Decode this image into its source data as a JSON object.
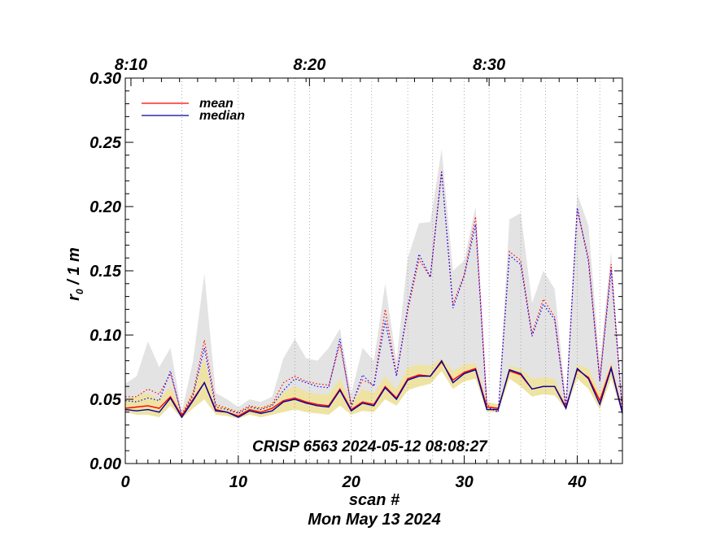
{
  "chart_data": {
    "type": "line",
    "title": "",
    "xlabel": "scan #",
    "ylabel": "r₀ / 1 m",
    "ylabel_main": "r",
    "ylabel_sub": "0",
    "ylabel_rest": " / 1 m",
    "date_label": "Mon May 13 2024",
    "annotation": "CRISP 6563 2024-05-12 08:08:27",
    "xlim": [
      0,
      44
    ],
    "ylim": [
      0,
      0.3
    ],
    "x_ticks": [
      0,
      10,
      20,
      30,
      40
    ],
    "x_tick_labels": [
      "0",
      "10",
      "20",
      "30",
      "40"
    ],
    "y_ticks": [
      0,
      0.05,
      0.1,
      0.15,
      0.2,
      0.25,
      0.3
    ],
    "y_tick_labels": [
      "0.00",
      "0.05",
      "0.10",
      "0.15",
      "0.20",
      "0.25",
      "0.30"
    ],
    "top_axis": {
      "ticks": [
        {
          "x": 0.5,
          "label": "8:10"
        },
        {
          "x": 16.3,
          "label": "8:20"
        },
        {
          "x": 32.2,
          "label": "8:30"
        }
      ]
    },
    "vertical_dotted_lines": [
      5,
      10,
      15,
      20,
      25,
      30,
      35,
      40,
      16.3,
      32.2,
      37.2,
      21.8,
      27.2,
      42.0
    ],
    "x": [
      0,
      1,
      2,
      3,
      4,
      5,
      6,
      7,
      8,
      9,
      10,
      11,
      12,
      13,
      14,
      15,
      16,
      17,
      18,
      19,
      20,
      21,
      22,
      23,
      24,
      25,
      26,
      27,
      28,
      29,
      30,
      31,
      32,
      33,
      34,
      35,
      36,
      37,
      38,
      39,
      40,
      41,
      42,
      43,
      44
    ],
    "series": [
      {
        "name": "mean",
        "color": "#ff0000",
        "style": "solid",
        "values": [
          0.043,
          0.044,
          0.045,
          0.043,
          0.052,
          0.037,
          0.05,
          0.063,
          0.042,
          0.04,
          0.037,
          0.042,
          0.04,
          0.043,
          0.049,
          0.051,
          0.048,
          0.046,
          0.045,
          0.058,
          0.042,
          0.048,
          0.046,
          0.06,
          0.051,
          0.066,
          0.069,
          0.068,
          0.079,
          0.065,
          0.071,
          0.074,
          0.044,
          0.043,
          0.072,
          0.069,
          0.058,
          0.06,
          0.06,
          0.044,
          0.073,
          0.067,
          0.049,
          0.075,
          0.04
        ]
      },
      {
        "name": "median",
        "color": "#0000a0",
        "style": "solid",
        "values": [
          0.042,
          0.041,
          0.042,
          0.04,
          0.051,
          0.036,
          0.049,
          0.063,
          0.041,
          0.04,
          0.036,
          0.041,
          0.039,
          0.041,
          0.048,
          0.05,
          0.047,
          0.045,
          0.044,
          0.057,
          0.041,
          0.047,
          0.045,
          0.059,
          0.05,
          0.065,
          0.068,
          0.068,
          0.08,
          0.063,
          0.07,
          0.073,
          0.042,
          0.042,
          0.073,
          0.07,
          0.058,
          0.06,
          0.06,
          0.043,
          0.074,
          0.066,
          0.046,
          0.074,
          0.039
        ]
      },
      {
        "name": "mean (dotted)",
        "color": "#ff0000",
        "style": "dotted",
        "values": [
          0.052,
          0.052,
          0.058,
          0.054,
          0.07,
          0.038,
          0.055,
          0.096,
          0.046,
          0.043,
          0.04,
          0.045,
          0.043,
          0.046,
          0.063,
          0.068,
          0.064,
          0.062,
          0.061,
          0.093,
          0.046,
          0.065,
          0.061,
          0.12,
          0.069,
          0.119,
          0.159,
          0.145,
          0.228,
          0.124,
          0.147,
          0.192,
          0.046,
          0.04,
          0.165,
          0.158,
          0.101,
          0.128,
          0.114,
          0.044,
          0.197,
          0.16,
          0.065,
          0.155,
          0.04
        ]
      },
      {
        "name": "median (dotted)",
        "color": "#0000ff",
        "style": "dotted",
        "values": [
          0.049,
          0.048,
          0.051,
          0.049,
          0.072,
          0.037,
          0.053,
          0.09,
          0.044,
          0.042,
          0.039,
          0.044,
          0.042,
          0.045,
          0.057,
          0.066,
          0.063,
          0.06,
          0.059,
          0.097,
          0.044,
          0.069,
          0.06,
          0.111,
          0.068,
          0.122,
          0.163,
          0.145,
          0.227,
          0.121,
          0.146,
          0.186,
          0.044,
          0.04,
          0.162,
          0.155,
          0.099,
          0.124,
          0.112,
          0.043,
          0.199,
          0.157,
          0.064,
          0.151,
          0.04
        ]
      }
    ],
    "bands": [
      {
        "name": "outer range",
        "color": "#e3e3e3",
        "lower": [
          0.042,
          0.041,
          0.042,
          0.04,
          0.051,
          0.036,
          0.049,
          0.063,
          0.041,
          0.04,
          0.036,
          0.041,
          0.039,
          0.041,
          0.048,
          0.05,
          0.047,
          0.045,
          0.044,
          0.057,
          0.041,
          0.047,
          0.045,
          0.059,
          0.05,
          0.065,
          0.068,
          0.068,
          0.08,
          0.063,
          0.07,
          0.073,
          0.042,
          0.042,
          0.073,
          0.07,
          0.058,
          0.06,
          0.06,
          0.043,
          0.074,
          0.066,
          0.046,
          0.074,
          0.039
        ],
        "upper": [
          0.062,
          0.068,
          0.095,
          0.075,
          0.09,
          0.04,
          0.08,
          0.148,
          0.055,
          0.05,
          0.044,
          0.05,
          0.048,
          0.052,
          0.082,
          0.097,
          0.082,
          0.08,
          0.09,
          0.105,
          0.054,
          0.09,
          0.08,
          0.14,
          0.08,
          0.16,
          0.187,
          0.188,
          0.245,
          0.15,
          0.158,
          0.2,
          0.048,
          0.043,
          0.19,
          0.195,
          0.125,
          0.15,
          0.136,
          0.05,
          0.21,
          0.185,
          0.078,
          0.165,
          0.042
        ]
      },
      {
        "name": "inner range",
        "color": "#efe3a3",
        "lower": [
          0.04,
          0.038,
          0.038,
          0.036,
          0.045,
          0.035,
          0.043,
          0.05,
          0.038,
          0.037,
          0.035,
          0.038,
          0.036,
          0.038,
          0.04,
          0.042,
          0.04,
          0.039,
          0.038,
          0.045,
          0.038,
          0.041,
          0.04,
          0.05,
          0.045,
          0.057,
          0.06,
          0.062,
          0.072,
          0.058,
          0.064,
          0.066,
          0.04,
          0.04,
          0.066,
          0.06,
          0.052,
          0.054,
          0.053,
          0.042,
          0.066,
          0.058,
          0.042,
          0.066,
          0.038
        ],
        "upper": [
          0.05,
          0.052,
          0.055,
          0.05,
          0.06,
          0.04,
          0.058,
          0.082,
          0.046,
          0.044,
          0.04,
          0.045,
          0.044,
          0.047,
          0.056,
          0.06,
          0.056,
          0.054,
          0.054,
          0.066,
          0.048,
          0.058,
          0.055,
          0.068,
          0.058,
          0.075,
          0.077,
          0.076,
          0.082,
          0.072,
          0.077,
          0.078,
          0.048,
          0.046,
          0.076,
          0.074,
          0.066,
          0.067,
          0.066,
          0.046,
          0.077,
          0.074,
          0.055,
          0.078,
          0.042
        ]
      }
    ],
    "legend": {
      "position": "top-left",
      "entries": [
        {
          "label": "mean",
          "color": "#ff0000"
        },
        {
          "label": "median",
          "color": "#0000a0"
        }
      ]
    }
  }
}
